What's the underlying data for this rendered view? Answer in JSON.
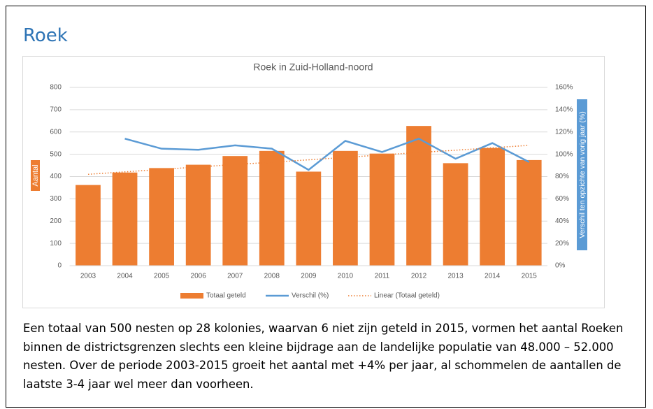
{
  "heading": "Roek",
  "chart_data": {
    "type": "bar",
    "title": "Roek in Zuid-Holland-noord",
    "y_label": "Aantal",
    "y2_label": "Verschil ten opzichte van vorig jaar (%)",
    "categories": [
      "2003",
      "2004",
      "2005",
      "2006",
      "2007",
      "2008",
      "2009",
      "2010",
      "2011",
      "2012",
      "2013",
      "2014",
      "2015"
    ],
    "series": [
      {
        "name": "Totaal geteld",
        "type": "bar",
        "color": "#ed7d31",
        "values": [
          362,
          418,
          438,
          453,
          492,
          515,
          422,
          515,
          503,
          627,
          460,
          528,
          474
        ]
      },
      {
        "name": "Verschil (%)",
        "type": "line",
        "axis": "y2",
        "color": "#5b9bd5",
        "values": [
          null,
          114,
          105,
          104,
          108,
          105,
          86,
          112,
          102,
          114,
          96,
          110,
          93
        ]
      },
      {
        "name": "Linear (Totaal geteld)",
        "type": "line",
        "style": "dotted",
        "color": "#ed7d31",
        "values": [
          410,
          421,
          432,
          443,
          454,
          464,
          475,
          486,
          497,
          508,
          518,
          529,
          540
        ]
      }
    ],
    "ylim": [
      0,
      800
    ],
    "yticks": [
      0,
      100,
      200,
      300,
      400,
      500,
      600,
      700,
      800
    ],
    "y2lim": [
      0,
      160
    ],
    "y2ticks": [
      {
        "value": 0,
        "label": "0%"
      },
      {
        "value": 20,
        "label": "20%"
      },
      {
        "value": 40,
        "label": "40%"
      },
      {
        "value": 60,
        "label": "60%"
      },
      {
        "value": 80,
        "label": "80%"
      },
      {
        "value": 100,
        "label": "100%"
      },
      {
        "value": 120,
        "label": "120%"
      },
      {
        "value": 140,
        "label": "140%"
      },
      {
        "value": 160,
        "label": "160%"
      }
    ],
    "grid": true,
    "legend": "bottom"
  },
  "paragraph": "Een totaal van 500 nesten op 28 kolonies, waarvan 6 niet zijn geteld in 2015, vormen het aantal Roeken binnen de districtsgrenzen slechts een kleine bijdrage aan de landelijke populatie van 48.000 – 52.000 nesten. Over de periode 2003-2015 groeit het aantal met +4% per jaar, al schommelen de aantallen de laatste 3-4 jaar wel meer dan voorheen."
}
